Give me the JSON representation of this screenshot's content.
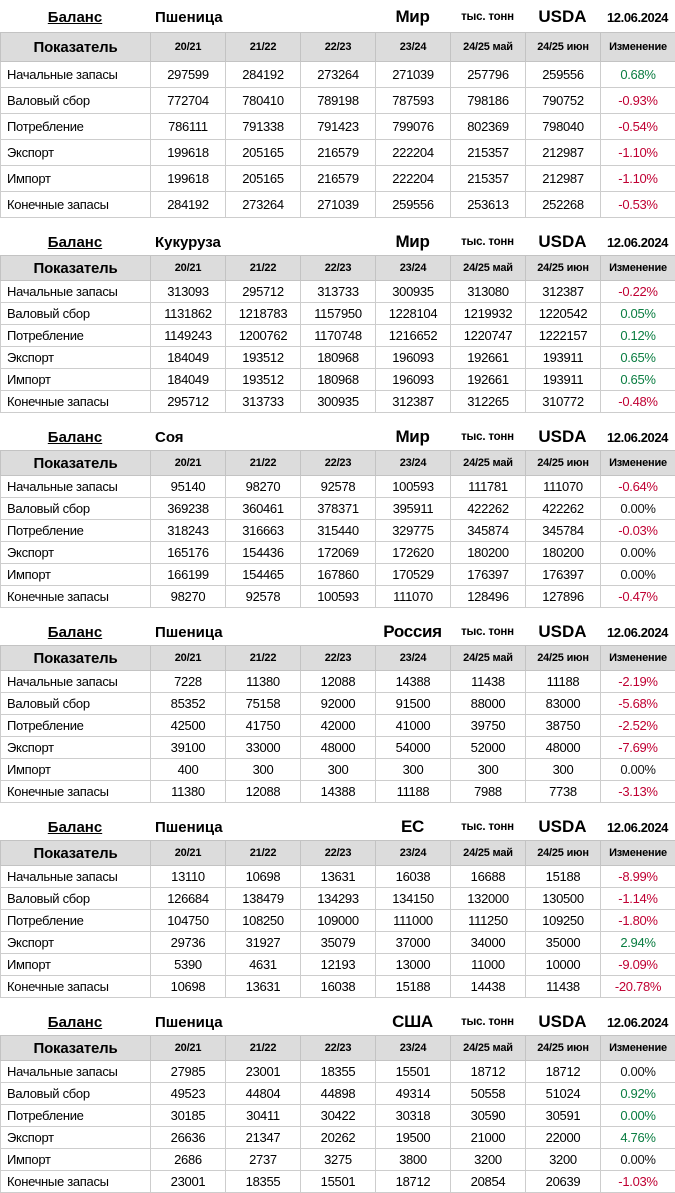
{
  "report": {
    "title": "Баланс",
    "unit": "тыс. тонн",
    "source": "USDA",
    "date": "12.06.2024"
  },
  "colors": {
    "positive": "#0a7d41",
    "negative": "#c00033",
    "neutral": "#151515",
    "header_bg": "#dcdcdc",
    "border": "#cdcdcd"
  },
  "columns": [
    "Показатель",
    "20/21",
    "21/22",
    "22/23",
    "23/24",
    "24/25 май",
    "24/25 июн",
    "Изменение"
  ],
  "tables": [
    {
      "balance_label": "Баланс",
      "commodity": "Пшеница",
      "region": "Мир",
      "unit": "тыс. тонн",
      "source": "USDA",
      "date": "12.06.2024",
      "rows": [
        {
          "label": "Начальные запасы",
          "values": [
            297599,
            284192,
            273264,
            271039,
            257796,
            259556
          ],
          "change": "0.68%",
          "change_color": "positive"
        },
        {
          "label": "Валовый сбор",
          "values": [
            772704,
            780410,
            789198,
            787593,
            798186,
            790752
          ],
          "change": "-0.93%",
          "change_color": "negative"
        },
        {
          "label": "Потребление",
          "values": [
            786111,
            791338,
            791423,
            799076,
            802369,
            798040
          ],
          "change": "-0.54%",
          "change_color": "negative"
        },
        {
          "label": "Экспорт",
          "values": [
            199618,
            205165,
            216579,
            222204,
            215357,
            212987
          ],
          "change": "-1.10%",
          "change_color": "negative"
        },
        {
          "label": "Импорт",
          "values": [
            199618,
            205165,
            216579,
            222204,
            215357,
            212987
          ],
          "change": "-1.10%",
          "change_color": "negative"
        },
        {
          "label": "Конечные запасы",
          "values": [
            284192,
            273264,
            271039,
            259556,
            253613,
            252268
          ],
          "change": "-0.53%",
          "change_color": "negative"
        }
      ]
    },
    {
      "balance_label": "Баланс",
      "commodity": "Кукуруза",
      "region": "Мир",
      "unit": "тыс. тонн",
      "source": "USDA",
      "date": "12.06.2024",
      "rows": [
        {
          "label": "Начальные запасы",
          "values": [
            313093,
            295712,
            313733,
            300935,
            313080,
            312387
          ],
          "change": "-0.22%",
          "change_color": "negative"
        },
        {
          "label": "Валовый сбор",
          "values": [
            1131862,
            1218783,
            1157950,
            1228104,
            1219932,
            1220542
          ],
          "change": "0.05%",
          "change_color": "positive"
        },
        {
          "label": "Потребление",
          "values": [
            1149243,
            1200762,
            1170748,
            1216652,
            1220747,
            1222157
          ],
          "change": "0.12%",
          "change_color": "positive"
        },
        {
          "label": "Экспорт",
          "values": [
            184049,
            193512,
            180968,
            196093,
            192661,
            193911
          ],
          "change": "0.65%",
          "change_color": "positive"
        },
        {
          "label": "Импорт",
          "values": [
            184049,
            193512,
            180968,
            196093,
            192661,
            193911
          ],
          "change": "0.65%",
          "change_color": "positive"
        },
        {
          "label": "Конечные запасы",
          "values": [
            295712,
            313733,
            300935,
            312387,
            312265,
            310772
          ],
          "change": "-0.48%",
          "change_color": "negative"
        }
      ]
    },
    {
      "balance_label": "Баланс",
      "commodity": "Соя",
      "region": "Мир",
      "unit": "тыс. тонн",
      "source": "USDA",
      "date": "12.06.2024",
      "rows": [
        {
          "label": "Начальные запасы",
          "values": [
            95140,
            98270,
            92578,
            100593,
            111781,
            111070
          ],
          "change": "-0.64%",
          "change_color": "negative"
        },
        {
          "label": "Валовый сбор",
          "values": [
            369238,
            360461,
            378371,
            395911,
            422262,
            422262
          ],
          "change": "0.00%",
          "change_color": "neutral"
        },
        {
          "label": "Потребление",
          "values": [
            318243,
            316663,
            315440,
            329775,
            345874,
            345784
          ],
          "change": "-0.03%",
          "change_color": "negative"
        },
        {
          "label": "Экспорт",
          "values": [
            165176,
            154436,
            172069,
            172620,
            180200,
            180200
          ],
          "change": "0.00%",
          "change_color": "neutral"
        },
        {
          "label": "Импорт",
          "values": [
            166199,
            154465,
            167860,
            170529,
            176397,
            176397
          ],
          "change": "0.00%",
          "change_color": "neutral"
        },
        {
          "label": "Конечные запасы",
          "values": [
            98270,
            92578,
            100593,
            111070,
            128496,
            127896
          ],
          "change": "-0.47%",
          "change_color": "negative"
        }
      ]
    },
    {
      "balance_label": "Баланс",
      "commodity": "Пшеница",
      "region": "Россия",
      "unit": "тыс. тонн",
      "source": "USDA",
      "date": "12.06.2024",
      "rows": [
        {
          "label": "Начальные запасы",
          "values": [
            7228,
            11380,
            12088,
            14388,
            11438,
            11188
          ],
          "change": "-2.19%",
          "change_color": "negative"
        },
        {
          "label": "Валовый сбор",
          "values": [
            85352,
            75158,
            92000,
            91500,
            88000,
            83000
          ],
          "change": "-5.68%",
          "change_color": "negative"
        },
        {
          "label": "Потребление",
          "values": [
            42500,
            41750,
            42000,
            41000,
            39750,
            38750
          ],
          "change": "-2.52%",
          "change_color": "negative"
        },
        {
          "label": "Экспорт",
          "values": [
            39100,
            33000,
            48000,
            54000,
            52000,
            48000
          ],
          "change": "-7.69%",
          "change_color": "negative"
        },
        {
          "label": "Импорт",
          "values": [
            400,
            300,
            300,
            300,
            300,
            300
          ],
          "change": "0.00%",
          "change_color": "neutral"
        },
        {
          "label": "Конечные запасы",
          "values": [
            11380,
            12088,
            14388,
            11188,
            7988,
            7738
          ],
          "change": "-3.13%",
          "change_color": "negative"
        }
      ]
    },
    {
      "balance_label": "Баланс",
      "commodity": "Пшеница",
      "region": "ЕС",
      "unit": "тыс. тонн",
      "source": "USDA",
      "date": "12.06.2024",
      "rows": [
        {
          "label": "Начальные запасы",
          "values": [
            13110,
            10698,
            13631,
            16038,
            16688,
            15188
          ],
          "change": "-8.99%",
          "change_color": "negative"
        },
        {
          "label": "Валовый сбор",
          "values": [
            126684,
            138479,
            134293,
            134150,
            132000,
            130500
          ],
          "change": "-1.14%",
          "change_color": "negative"
        },
        {
          "label": "Потребление",
          "values": [
            104750,
            108250,
            109000,
            111000,
            111250,
            109250
          ],
          "change": "-1.80%",
          "change_color": "negative"
        },
        {
          "label": "Экспорт",
          "values": [
            29736,
            31927,
            35079,
            37000,
            34000,
            35000
          ],
          "change": "2.94%",
          "change_color": "positive"
        },
        {
          "label": "Импорт",
          "values": [
            5390,
            4631,
            12193,
            13000,
            11000,
            10000
          ],
          "change": "-9.09%",
          "change_color": "negative"
        },
        {
          "label": "Конечные запасы",
          "values": [
            10698,
            13631,
            16038,
            15188,
            14438,
            11438
          ],
          "change": "-20.78%",
          "change_color": "negative"
        }
      ]
    },
    {
      "balance_label": "Баланс",
      "commodity": "Пшеница",
      "region": "США",
      "unit": "тыс. тонн",
      "source": "USDA",
      "date": "12.06.2024",
      "rows": [
        {
          "label": "Начальные запасы",
          "values": [
            27985,
            23001,
            18355,
            15501,
            18712,
            18712
          ],
          "change": "0.00%",
          "change_color": "neutral"
        },
        {
          "label": "Валовый сбор",
          "values": [
            49523,
            44804,
            44898,
            49314,
            50558,
            51024
          ],
          "change": "0.92%",
          "change_color": "positive"
        },
        {
          "label": "Потребление",
          "values": [
            30185,
            30411,
            30422,
            30318,
            30590,
            30591
          ],
          "change": "0.00%",
          "change_color": "positive"
        },
        {
          "label": "Экспорт",
          "values": [
            26636,
            21347,
            20262,
            19500,
            21000,
            22000
          ],
          "change": "4.76%",
          "change_color": "positive"
        },
        {
          "label": "Импорт",
          "values": [
            2686,
            2737,
            3275,
            3800,
            3200,
            3200
          ],
          "change": "0.00%",
          "change_color": "neutral"
        },
        {
          "label": "Конечные запасы",
          "values": [
            23001,
            18355,
            15501,
            18712,
            20854,
            20639
          ],
          "change": "-1.03%",
          "change_color": "negative"
        }
      ]
    }
  ]
}
